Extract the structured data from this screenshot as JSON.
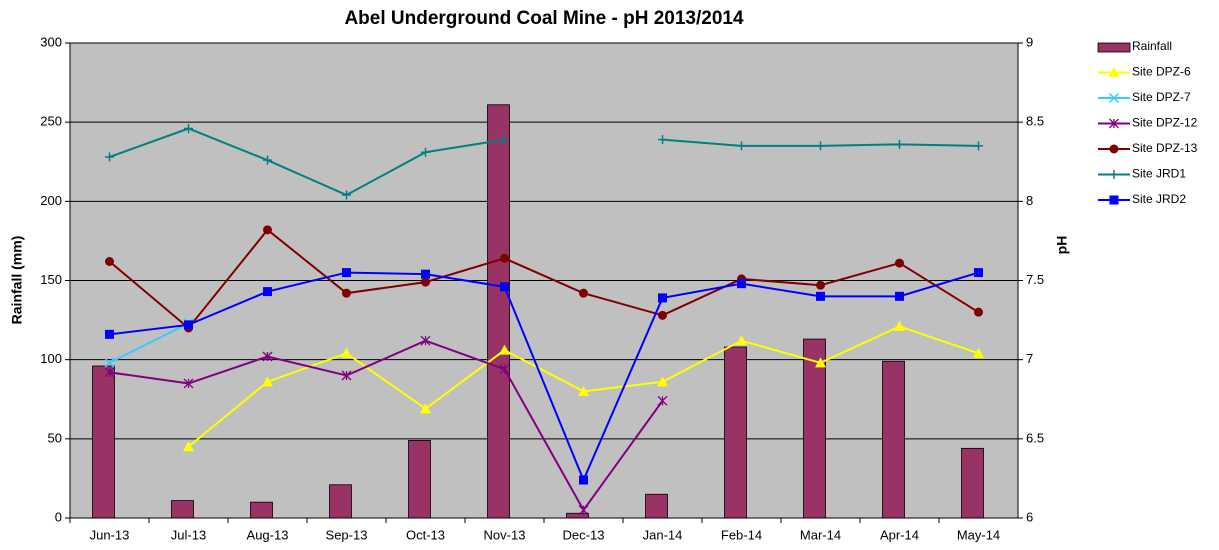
{
  "chart_data": {
    "type": "bar-line",
    "title": "Abel Underground Coal Mine - pH 2013/2014",
    "ylabel": "Rainfall (mm)",
    "y2label": "pH",
    "categories": [
      "Jun-13",
      "Jul-13",
      "Aug-13",
      "Sep-13",
      "Oct-13",
      "Nov-13",
      "Dec-13",
      "Jan-14",
      "Feb-14",
      "Mar-14",
      "Apr-14",
      "May-14"
    ],
    "ylim": [
      0,
      300
    ],
    "yticks": [
      0,
      50,
      100,
      150,
      200,
      250,
      300
    ],
    "y2lim": [
      6,
      9
    ],
    "y2ticks": [
      6,
      6.5,
      7,
      7.5,
      8,
      8.5,
      9
    ],
    "grid": true,
    "legend": "right",
    "series": [
      {
        "name": "Rainfall",
        "type": "bar",
        "color": "#993366",
        "values": [
          96,
          11,
          10,
          21,
          49,
          261,
          3,
          15,
          108,
          113,
          99,
          44
        ]
      },
      {
        "name": "Site DPZ-6",
        "type": "line",
        "axis": "y2",
        "marker": "triangle",
        "color": "#ffff00",
        "values": [
          null,
          6.45,
          6.86,
          7.04,
          6.69,
          7.06,
          6.8,
          6.86,
          7.12,
          6.98,
          7.21,
          7.04
        ]
      },
      {
        "name": "Site DPZ-7",
        "type": "line",
        "axis": "y2",
        "marker": "x",
        "color": "#33ccff",
        "values": [
          6.98,
          7.23,
          null,
          null,
          null,
          null,
          null,
          null,
          null,
          null,
          null,
          null
        ]
      },
      {
        "name": "Site DPZ-12",
        "type": "line",
        "axis": "y2",
        "marker": "star",
        "color": "#800080",
        "values": [
          6.92,
          6.85,
          7.02,
          6.9,
          7.12,
          6.94,
          6.05,
          6.74,
          null,
          null,
          null,
          null
        ]
      },
      {
        "name": "Site DPZ-13",
        "type": "line",
        "axis": "y2",
        "marker": "circle",
        "color": "#800000",
        "values": [
          7.62,
          7.2,
          7.82,
          7.42,
          7.49,
          7.64,
          7.42,
          7.28,
          7.51,
          7.47,
          7.61,
          7.3
        ]
      },
      {
        "name": "Site JRD1",
        "type": "line",
        "axis": "y2",
        "marker": "plus",
        "color": "#008080",
        "values": [
          8.28,
          8.46,
          8.26,
          8.04,
          8.31,
          8.39,
          null,
          8.39,
          8.35,
          8.35,
          8.36,
          8.35
        ]
      },
      {
        "name": "Site JRD2",
        "type": "line",
        "axis": "y2",
        "marker": "square",
        "color": "#0000ff",
        "values": [
          7.16,
          7.22,
          7.43,
          7.55,
          7.54,
          7.46,
          6.24,
          7.39,
          7.48,
          7.4,
          7.4,
          7.55
        ]
      }
    ]
  }
}
